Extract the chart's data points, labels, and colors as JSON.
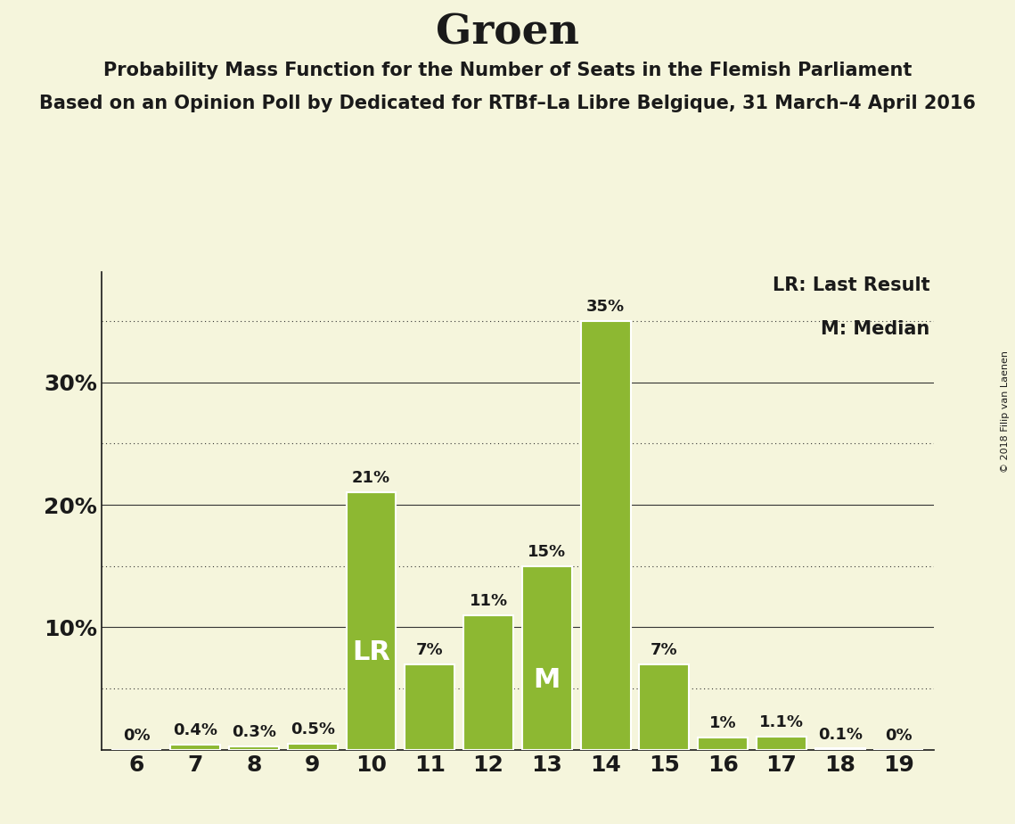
{
  "title": "Groen",
  "subtitle1": "Probability Mass Function for the Number of Seats in the Flemish Parliament",
  "subtitle2": "Based on an Opinion Poll by Dedicated for RTBf–La Libre Belgique, 31 March–4 April 2016",
  "copyright": "© 2018 Filip van Laenen",
  "seats": [
    6,
    7,
    8,
    9,
    10,
    11,
    12,
    13,
    14,
    15,
    16,
    17,
    18,
    19
  ],
  "probabilities": [
    0.0,
    0.4,
    0.3,
    0.5,
    21.0,
    7.0,
    11.0,
    15.0,
    35.0,
    7.0,
    1.0,
    1.1,
    0.1,
    0.0
  ],
  "bar_color": "#8db832",
  "bar_edge_color": "#ffffff",
  "background_color": "#f5f5dc",
  "LR_seat": 10,
  "M_seat": 13,
  "legend_LR": "LR: Last Result",
  "legend_M": "M: Median",
  "yticks": [
    0,
    10,
    20,
    30
  ],
  "ytick_labels": [
    "",
    "10%",
    "20%",
    "30%"
  ],
  "dotted_grid_values": [
    5,
    15,
    25,
    35
  ],
  "solid_grid_values": [
    10,
    20,
    30
  ],
  "text_color": "#1a1a1a",
  "bar_label_fontsize": 13,
  "title_fontsize": 34,
  "subtitle1_fontsize": 15,
  "subtitle2_fontsize": 15,
  "tick_fontsize": 18,
  "LR_M_fontsize": 22,
  "legend_fontsize": 15,
  "copyright_fontsize": 8
}
